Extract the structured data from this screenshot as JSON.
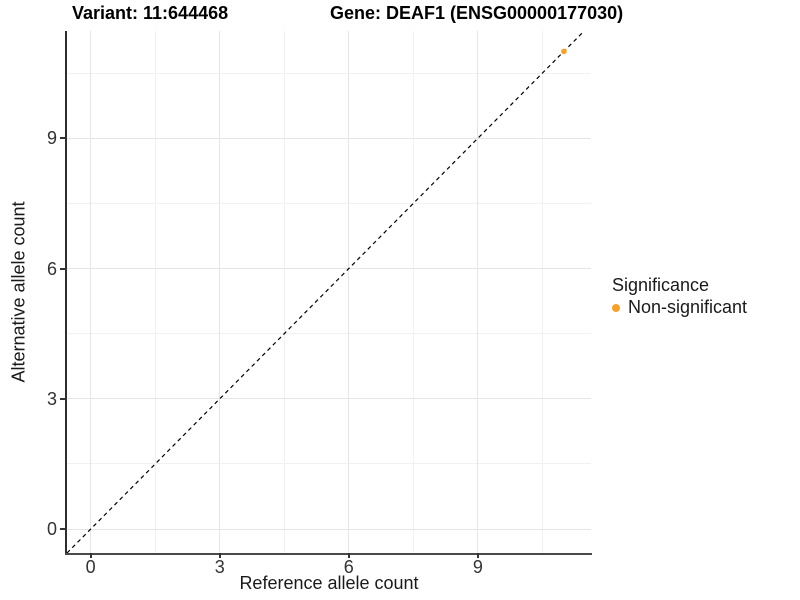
{
  "titles": {
    "variant": "Variant: 11:644468",
    "gene": "Gene: DEAF1 (ENSG00000177030)"
  },
  "legend": {
    "title": "Significance",
    "items": [
      {
        "label": "Non-significant",
        "color": "#F9A126"
      }
    ]
  },
  "chart_data": {
    "type": "scatter",
    "title": "Variant: 11:644468    Gene: DEAF1 (ENSG00000177030)",
    "xlabel": "Reference allele count",
    "ylabel": "Alternative allele count",
    "xlim": [
      -0.55,
      11.63
    ],
    "ylim": [
      -0.55,
      11.47
    ],
    "x_major_ticks": [
      0,
      3,
      6,
      9
    ],
    "y_major_ticks": [
      0,
      3,
      6,
      9
    ],
    "x_minor_gridlines": [
      1.5,
      4.5,
      7.5,
      10.5
    ],
    "y_minor_gridlines": [
      1.5,
      4.5,
      7.5,
      10.5
    ],
    "grid": true,
    "legend_position": "right",
    "series": [
      {
        "name": "Non-significant",
        "color": "#F9A126",
        "points": [
          {
            "x": 11,
            "y": 11
          }
        ]
      }
    ],
    "reference_line": {
      "type": "identity y=x",
      "style": "dashed",
      "color": "#000000"
    }
  },
  "colors": {
    "point": "#F9A126",
    "grid_major": "#e5e5e5",
    "grid_minor": "#f1f1f1",
    "axis_line": "#2e2e2e",
    "title_text": "#000000",
    "tick_text": "#333333"
  }
}
